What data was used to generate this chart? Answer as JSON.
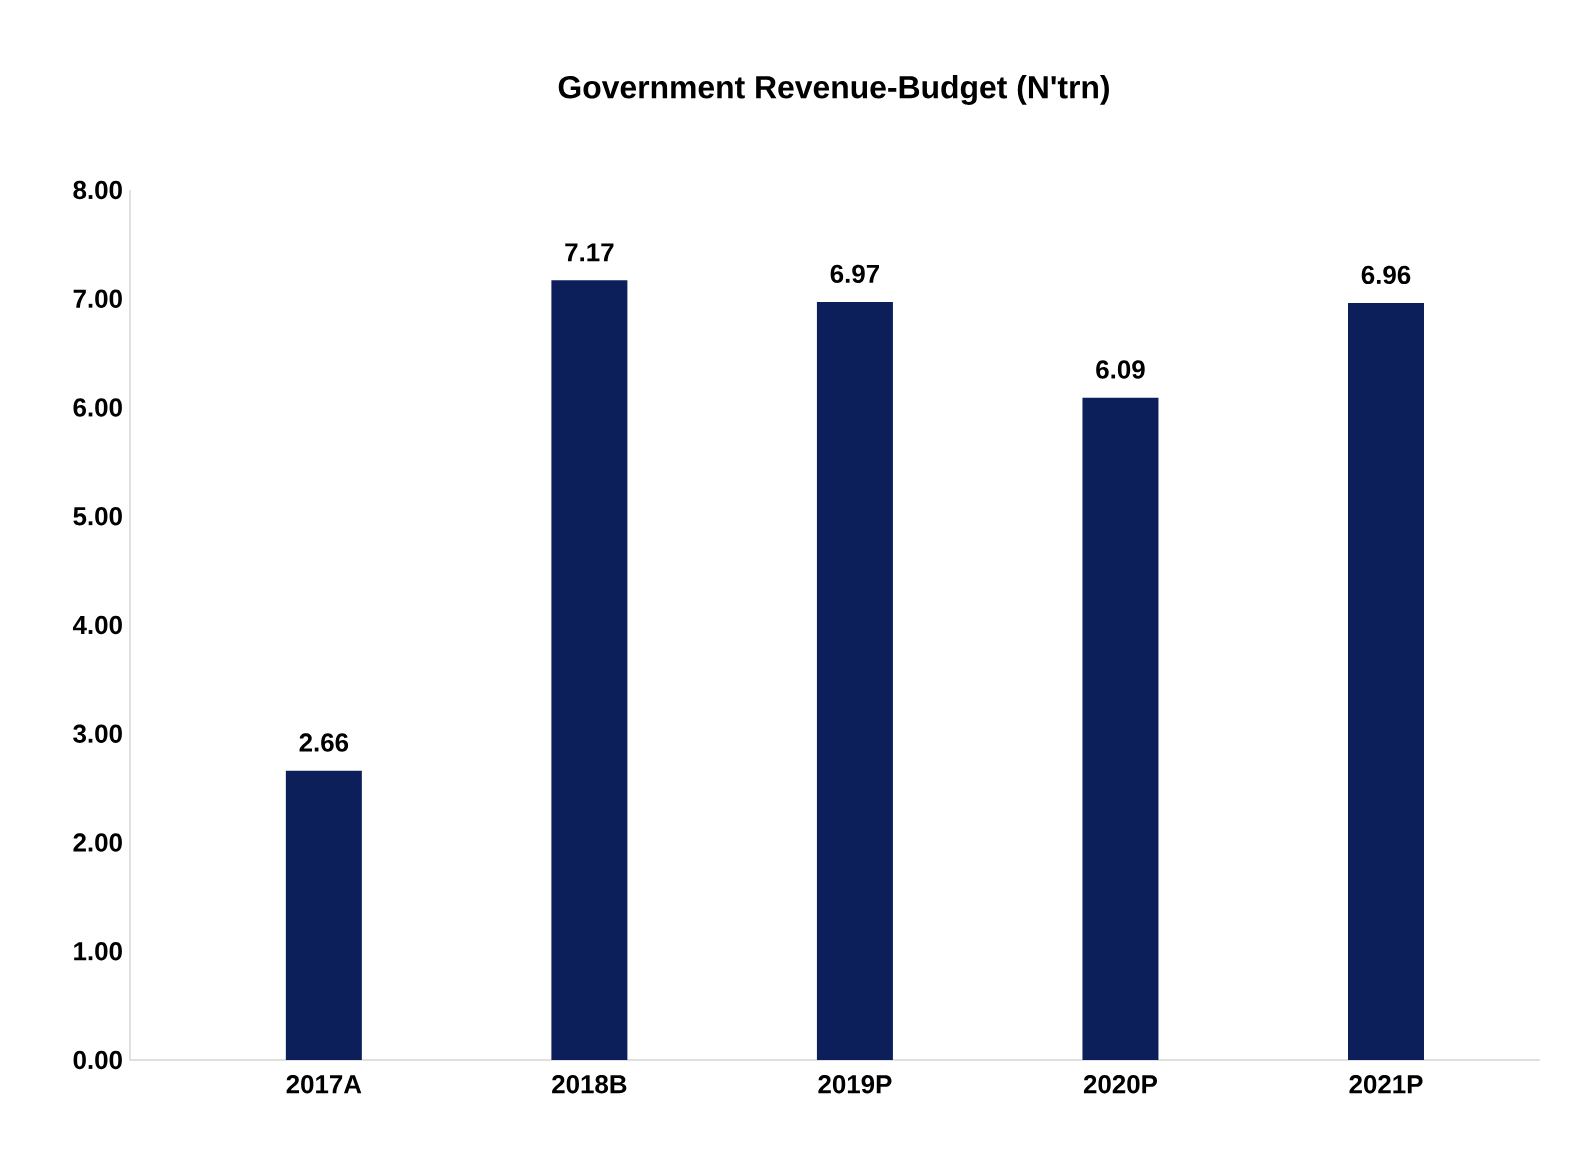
{
  "chart_data": {
    "type": "bar",
    "title": "Government Revenue-Budget (N'trn)",
    "categories": [
      "2017A",
      "2018B",
      "2019P",
      "2020P",
      "2021P"
    ],
    "values": [
      2.66,
      7.17,
      6.97,
      6.09,
      6.96
    ],
    "color": "#0c1f5b",
    "ylim": [
      0,
      8
    ],
    "yticks": [
      {
        "value": 0,
        "label": "0.00"
      },
      {
        "value": 1,
        "label": "1.00"
      },
      {
        "value": 2,
        "label": "2.00"
      },
      {
        "value": 3,
        "label": "3.00"
      },
      {
        "value": 4,
        "label": "4.00"
      },
      {
        "value": 5,
        "label": "5.00"
      },
      {
        "value": 6,
        "label": "6.00"
      },
      {
        "value": 7,
        "label": "7.00"
      },
      {
        "value": 8,
        "label": "8.00"
      }
    ],
    "data_labels": true,
    "grid": false
  }
}
